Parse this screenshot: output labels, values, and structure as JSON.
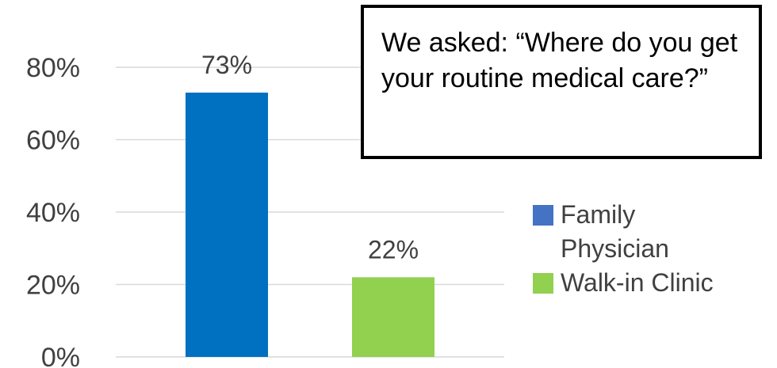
{
  "chart_data": {
    "type": "bar",
    "title": "",
    "xlabel": "",
    "ylabel": "",
    "ylim": [
      0,
      80
    ],
    "yticks": [
      0,
      20,
      40,
      60,
      80
    ],
    "ytick_labels": [
      "0%",
      "20%",
      "40%",
      "60%",
      "80%"
    ],
    "grid": true,
    "legend_position": "right",
    "series": [
      {
        "name": "Family Physician",
        "values": [
          73
        ],
        "label": "73%",
        "color": "#0070c0"
      },
      {
        "name": "Walk-in Clinic",
        "values": [
          22
        ],
        "label": "22%",
        "color": "#92d050"
      }
    ]
  },
  "callout": {
    "text": "We asked: “Where do you get your routine medical care?”"
  },
  "legend": {
    "items": [
      {
        "label": "Family Physician",
        "color": "#4472c4"
      },
      {
        "label": "Walk-in Clinic",
        "color": "#92d050"
      }
    ]
  }
}
